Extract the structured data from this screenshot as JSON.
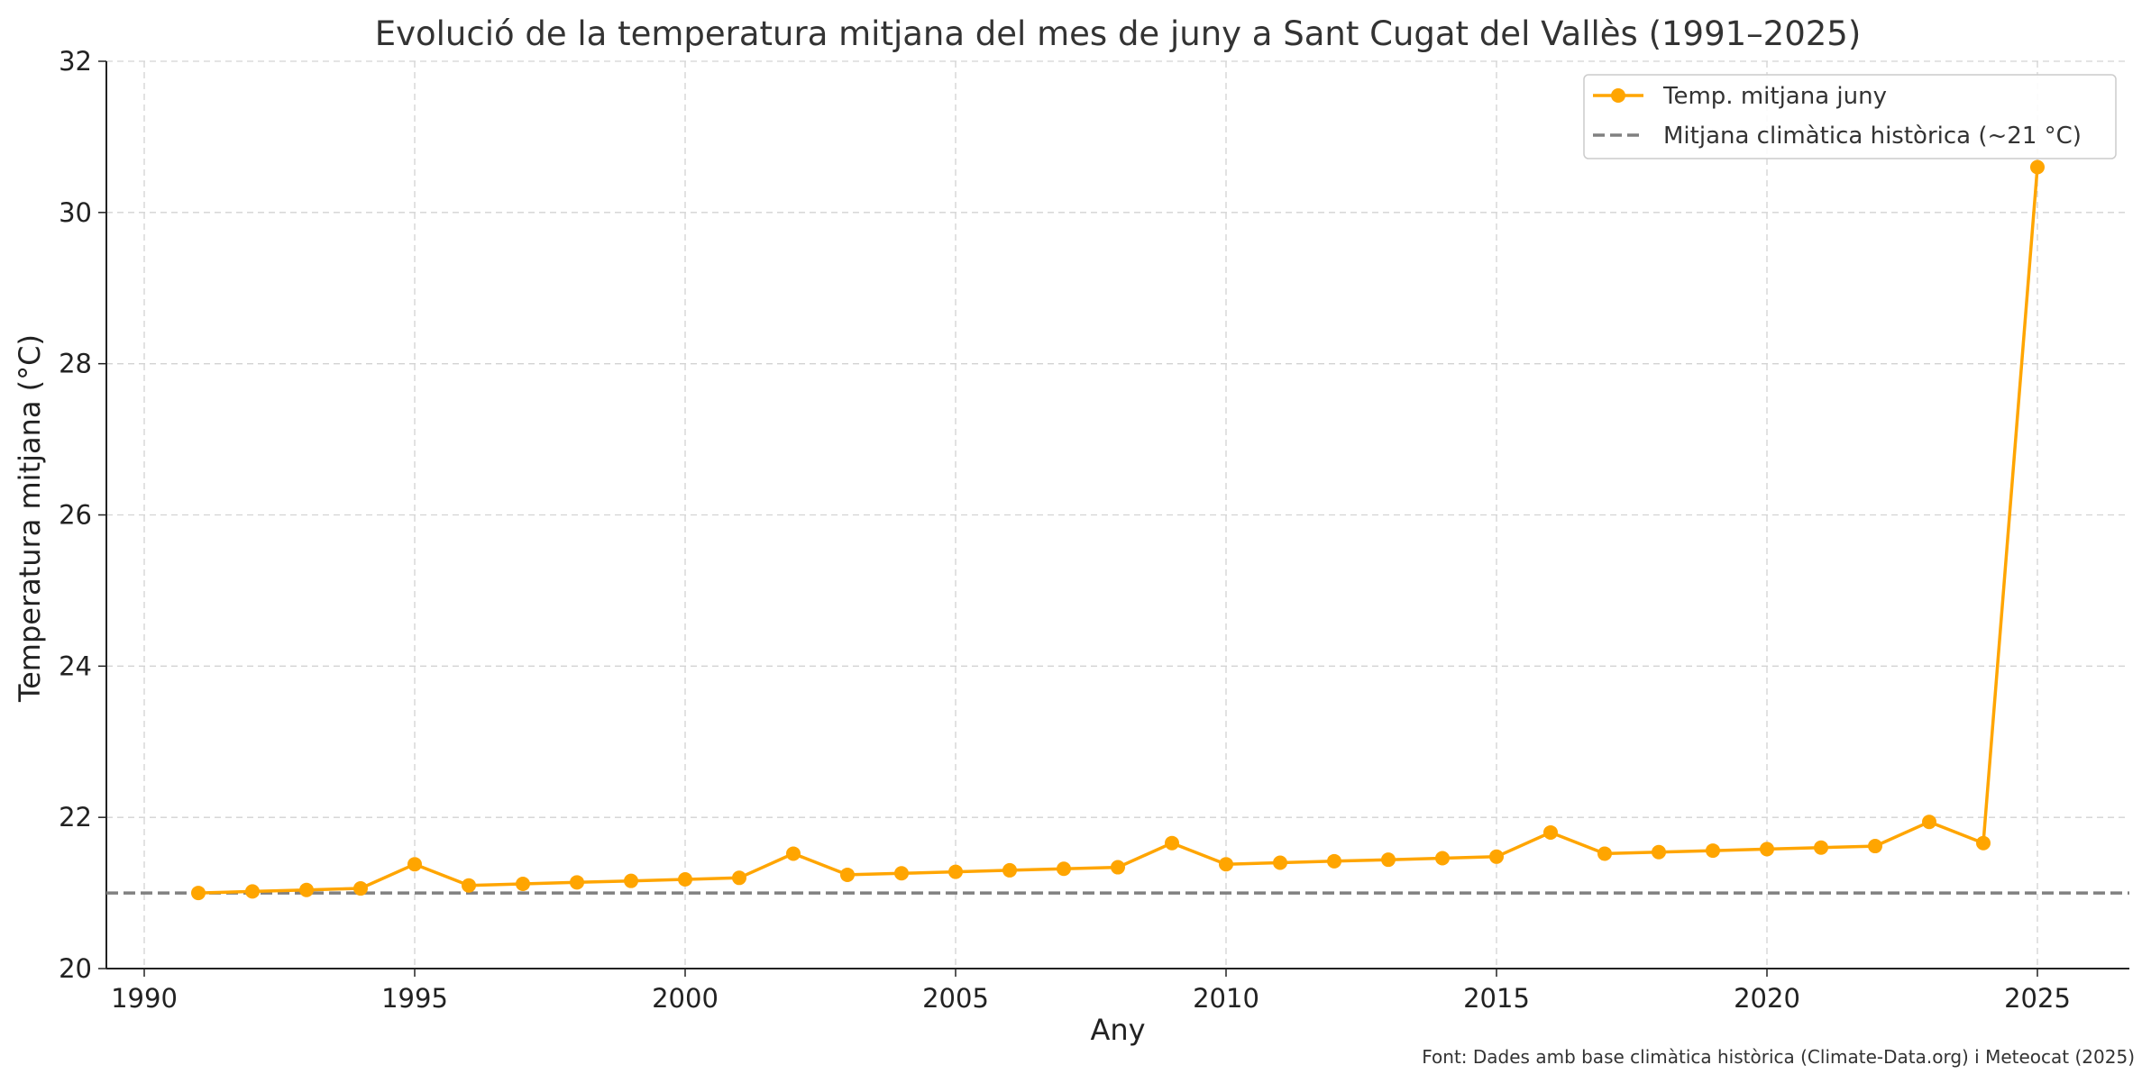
{
  "chart_data": {
    "type": "line",
    "title": "Evolució de la temperatura mitjana del mes de juny a Sant Cugat del Vallès (1991–2025)",
    "xlabel": "Any",
    "ylabel": "Temperatura mitjana (°C)",
    "xlim": [
      1989.3,
      2026.7
    ],
    "ylim": [
      20,
      32
    ],
    "x_ticks": [
      1990,
      1995,
      2000,
      2005,
      2010,
      2015,
      2020,
      2025
    ],
    "y_ticks": [
      20,
      22,
      24,
      26,
      28,
      30,
      32
    ],
    "grid": true,
    "legend_position": "top-right",
    "series": [
      {
        "name": "Temp. mitjana juny",
        "color": "#FFA500",
        "marker": "circle",
        "x": [
          1991,
          1992,
          1993,
          1994,
          1995,
          1996,
          1997,
          1998,
          1999,
          2000,
          2001,
          2002,
          2003,
          2004,
          2005,
          2006,
          2007,
          2008,
          2009,
          2010,
          2011,
          2012,
          2013,
          2014,
          2015,
          2016,
          2017,
          2018,
          2019,
          2020,
          2021,
          2022,
          2023,
          2024,
          2025
        ],
        "y": [
          21.0,
          21.02,
          21.04,
          21.06,
          21.38,
          21.1,
          21.12,
          21.14,
          21.16,
          21.18,
          21.2,
          21.52,
          21.24,
          21.26,
          21.28,
          21.3,
          21.32,
          21.34,
          21.66,
          21.38,
          21.4,
          21.42,
          21.44,
          21.46,
          21.48,
          21.8,
          21.52,
          21.54,
          21.56,
          21.58,
          21.6,
          21.62,
          21.94,
          21.66,
          30.6
        ]
      }
    ],
    "reference_line": {
      "name": "Mitjana climàtica històrica (~21 °C)",
      "y": 21,
      "color": "#808080",
      "style": "dashed"
    },
    "source_note": "Font: Dades amb base climàtica històrica (Climate-Data.org) i Meteocat (2025)"
  }
}
